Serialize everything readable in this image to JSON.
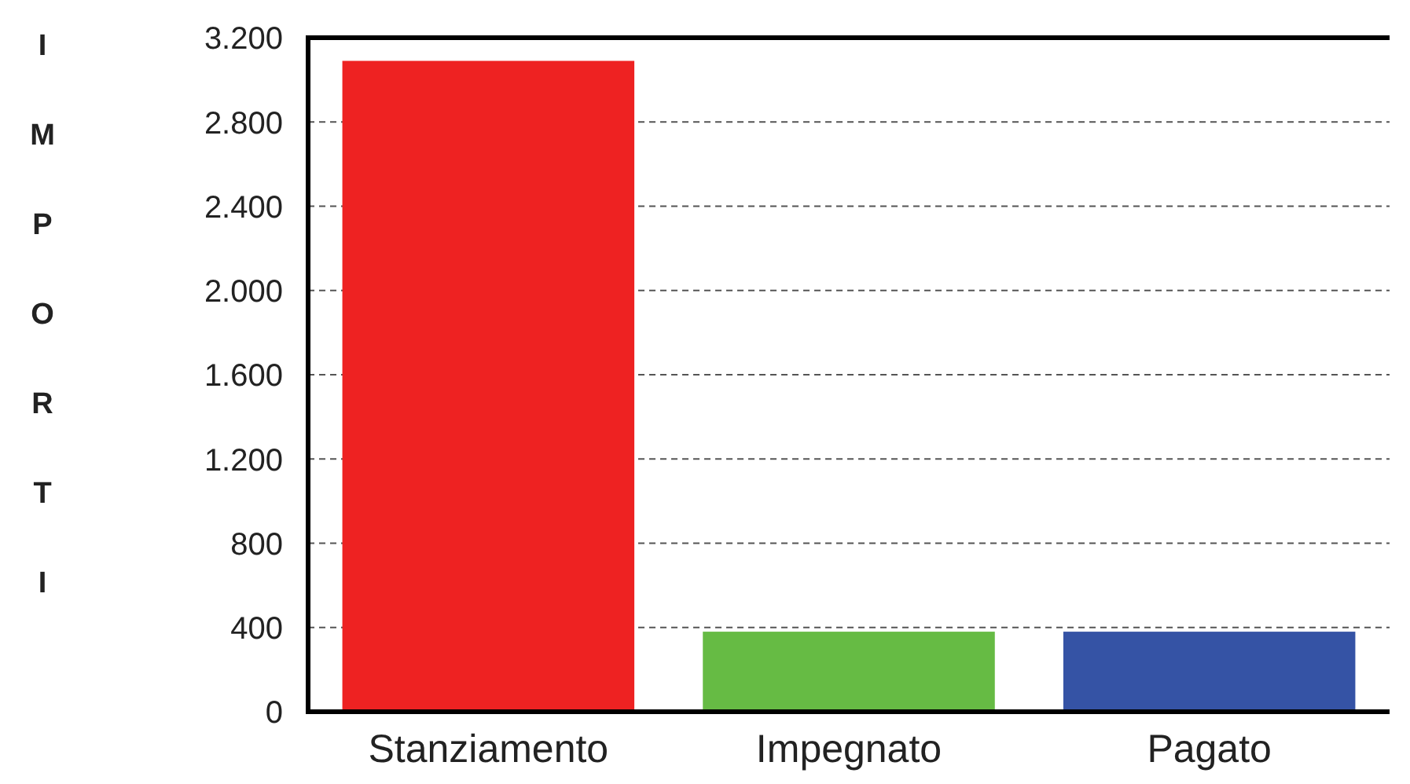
{
  "chart_data": {
    "type": "bar",
    "ylabel": "IMPORTI",
    "categories": [
      "Stanziamento",
      "Impegnato",
      "Pagato"
    ],
    "values": [
      3090,
      380,
      380
    ],
    "colors": [
      "#ee2222",
      "#66bb44",
      "#3553a5"
    ],
    "ylim": [
      0,
      3200
    ],
    "yticks": [
      0,
      400,
      800,
      {
        "value": 1200,
        "label": "1.200"
      },
      {
        "value": 1600,
        "label": "1.600"
      },
      {
        "value": 2000,
        "label": "2.000"
      },
      {
        "value": 2400,
        "label": "2.400"
      },
      {
        "value": 2800,
        "label": "2.800"
      },
      {
        "value": 3200,
        "label": "3.200"
      }
    ],
    "grid": "y"
  }
}
